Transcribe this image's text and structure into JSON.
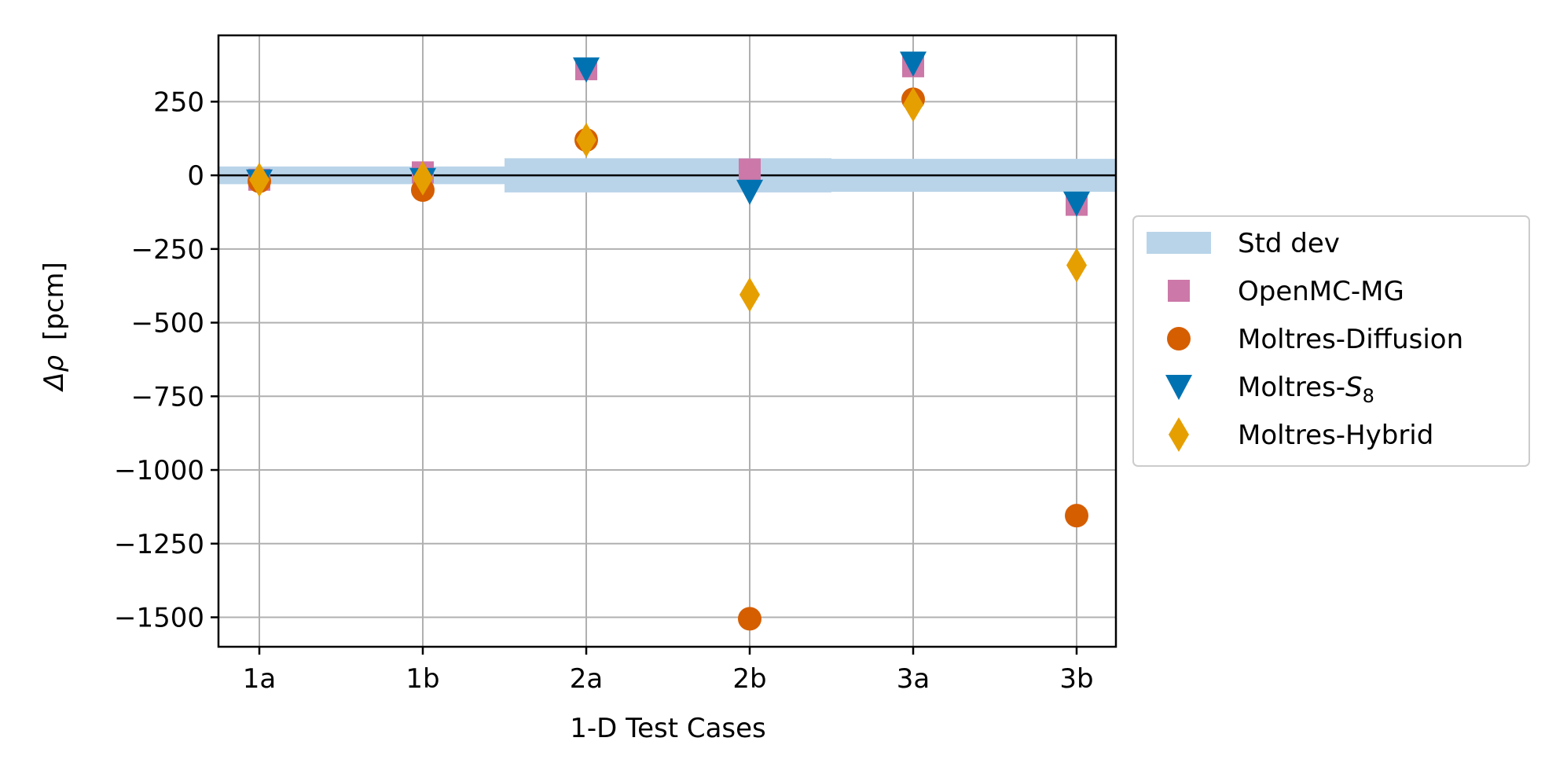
{
  "chart_data": {
    "type": "scatter",
    "title": "",
    "xlabel": "1-D Test Cases",
    "ylabel_symbol": "Δρ",
    "ylabel_unit": "[pcm]",
    "categories": [
      "1a",
      "1b",
      "2a",
      "2b",
      "3a",
      "3b"
    ],
    "ylim": [
      -1600,
      475
    ],
    "yticks": [
      250,
      0,
      -250,
      -500,
      -750,
      -1000,
      -1250,
      -1500
    ],
    "ytick_labels": [
      "250",
      "0",
      "−250",
      "−500",
      "−750",
      "−1000",
      "−1250",
      "−1500"
    ],
    "grid": true,
    "zero_line": true,
    "legend_position": "center-right-outside",
    "std_dev": {
      "name": "Std dev",
      "color": "#b9d4e9",
      "values": [
        30,
        30,
        58,
        58,
        56,
        56
      ]
    },
    "series": [
      {
        "name": "OpenMC-MG",
        "marker": "square",
        "color": "#cc78a8",
        "values": [
          -15,
          10,
          360,
          20,
          370,
          -100
        ]
      },
      {
        "name": "Moltres-Diffusion",
        "marker": "circle",
        "color": "#d55e00",
        "values": [
          -20,
          -50,
          120,
          -1505,
          258,
          -1155
        ]
      },
      {
        "name_prefix": "Moltres-",
        "name_math": "S",
        "name_sub": "8",
        "marker": "triangle-down",
        "color": "#0072b2",
        "values": [
          -20,
          -15,
          360,
          -55,
          380,
          -95
        ]
      },
      {
        "name": "Moltres-Hybrid",
        "marker": "diamond",
        "color": "#e69f00",
        "values": [
          -15,
          -10,
          120,
          -405,
          240,
          -305
        ]
      }
    ]
  }
}
